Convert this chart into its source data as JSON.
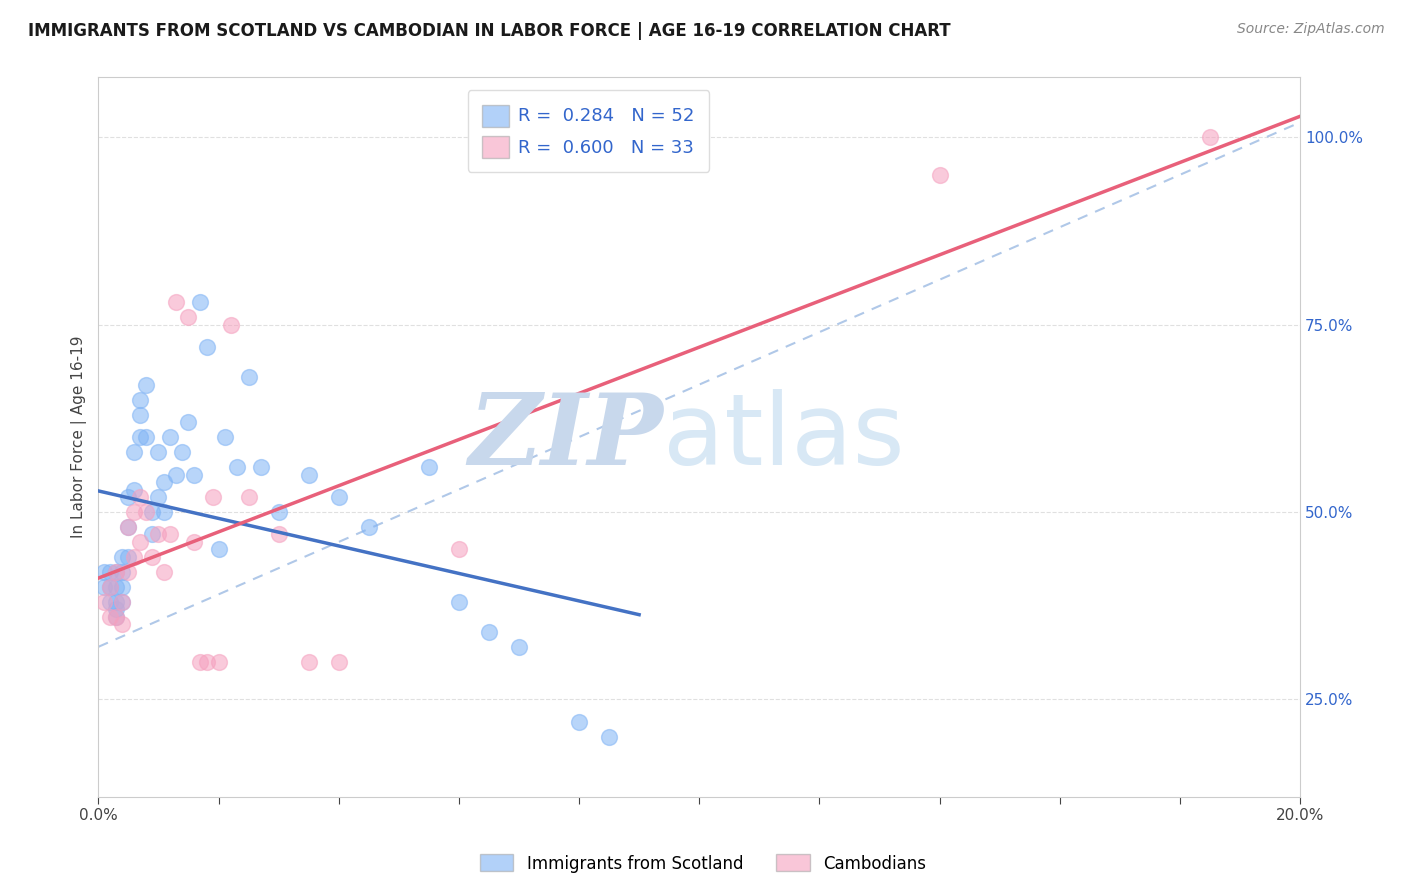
{
  "title": "IMMIGRANTS FROM SCOTLAND VS CAMBODIAN IN LABOR FORCE | AGE 16-19 CORRELATION CHART",
  "source": "Source: ZipAtlas.com",
  "ylabel": "In Labor Force | Age 16-19",
  "legend_labels": [
    "Immigrants from Scotland",
    "Cambodians"
  ],
  "r_scotland": 0.284,
  "n_scotland": 52,
  "r_cambodian": 0.6,
  "n_cambodian": 33,
  "scotland_color": "#7fb3f5",
  "cambodian_color": "#f5a0be",
  "scotland_line_color": "#4472c4",
  "cambodian_line_color": "#e8607a",
  "ref_line_color": "#b0c8e8",
  "scotland_points_x": [
    0.001,
    0.001,
    0.002,
    0.002,
    0.002,
    0.003,
    0.003,
    0.003,
    0.003,
    0.003,
    0.004,
    0.004,
    0.004,
    0.004,
    0.005,
    0.005,
    0.005,
    0.006,
    0.006,
    0.007,
    0.007,
    0.007,
    0.008,
    0.008,
    0.009,
    0.009,
    0.01,
    0.01,
    0.011,
    0.011,
    0.012,
    0.013,
    0.014,
    0.015,
    0.016,
    0.017,
    0.018,
    0.02,
    0.021,
    0.023,
    0.025,
    0.027,
    0.03,
    0.035,
    0.04,
    0.045,
    0.055,
    0.06,
    0.065,
    0.07,
    0.08,
    0.085
  ],
  "scotland_points_y": [
    0.42,
    0.4,
    0.42,
    0.4,
    0.38,
    0.42,
    0.4,
    0.38,
    0.37,
    0.36,
    0.44,
    0.42,
    0.4,
    0.38,
    0.52,
    0.48,
    0.44,
    0.58,
    0.53,
    0.65,
    0.63,
    0.6,
    0.67,
    0.6,
    0.5,
    0.47,
    0.58,
    0.52,
    0.54,
    0.5,
    0.6,
    0.55,
    0.58,
    0.62,
    0.55,
    0.78,
    0.72,
    0.45,
    0.6,
    0.56,
    0.68,
    0.56,
    0.5,
    0.55,
    0.52,
    0.48,
    0.56,
    0.38,
    0.34,
    0.32,
    0.22,
    0.2
  ],
  "cambodian_points_x": [
    0.001,
    0.002,
    0.002,
    0.003,
    0.003,
    0.004,
    0.004,
    0.005,
    0.005,
    0.006,
    0.006,
    0.007,
    0.007,
    0.008,
    0.009,
    0.01,
    0.011,
    0.012,
    0.013,
    0.015,
    0.016,
    0.017,
    0.018,
    0.019,
    0.02,
    0.022,
    0.025,
    0.03,
    0.035,
    0.04,
    0.06,
    0.14,
    0.185
  ],
  "cambodian_points_y": [
    0.38,
    0.4,
    0.36,
    0.42,
    0.36,
    0.38,
    0.35,
    0.48,
    0.42,
    0.5,
    0.44,
    0.52,
    0.46,
    0.5,
    0.44,
    0.47,
    0.42,
    0.47,
    0.78,
    0.76,
    0.46,
    0.3,
    0.3,
    0.52,
    0.3,
    0.75,
    0.52,
    0.47,
    0.3,
    0.3,
    0.45,
    0.95,
    1.0
  ],
  "xlim": [
    0.0,
    0.2
  ],
  "ylim": [
    0.12,
    1.08
  ],
  "yticks_right": [
    0.25,
    0.5,
    0.75,
    1.0
  ],
  "ytick_labels_right": [
    "25.0%",
    "50.0%",
    "75.0%",
    "100.0%"
  ],
  "xtick_positions": [
    0.0,
    0.02,
    0.04,
    0.06,
    0.08,
    0.1,
    0.12,
    0.14,
    0.16,
    0.18,
    0.2
  ],
  "xtick_label_positions": [
    0.0,
    0.2
  ],
  "xtick_label_values": [
    "0.0%",
    "20.0%"
  ],
  "watermark_zip": "ZIP",
  "watermark_atlas": "atlas",
  "watermark_color": "#cfe0f0",
  "background_color": "#ffffff",
  "grid_color": "#e0e0e0",
  "title_fontsize": 12,
  "axis_label_color": "#3366cc"
}
